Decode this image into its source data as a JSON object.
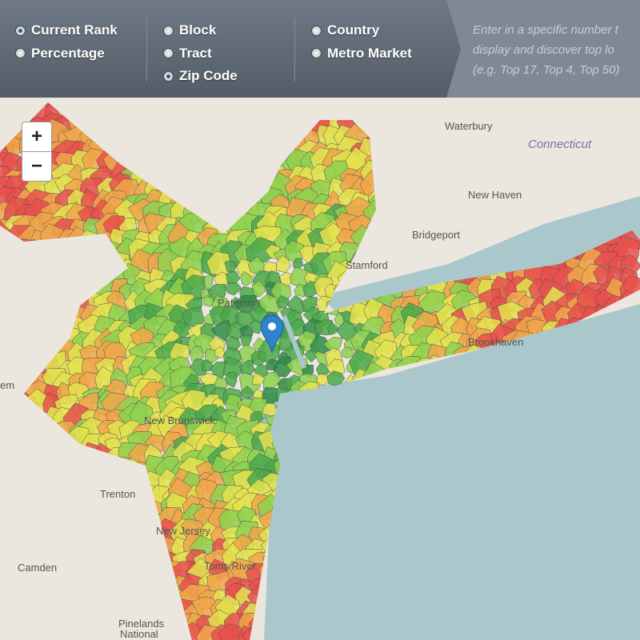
{
  "controls": {
    "rank_options": [
      {
        "label": "Current Rank",
        "selected": true
      },
      {
        "label": "Percentage",
        "selected": false
      }
    ],
    "geography_options": [
      {
        "label": "Block",
        "selected": false
      },
      {
        "label": "Tract",
        "selected": false
      },
      {
        "label": "Zip Code",
        "selected": true
      }
    ],
    "scope_options": [
      {
        "label": "Country",
        "selected": false
      },
      {
        "label": "Metro Market",
        "selected": false
      }
    ],
    "hint": [
      "Enter in a specific number t",
      "display and discover top lo",
      "(e.g. Top 17, Top 4, Top 50)"
    ]
  },
  "zoom": {
    "zoom_in": "+",
    "zoom_out": "−"
  },
  "map_labels": [
    "Waterbury",
    "Connecticut",
    "New Haven",
    "Bridgeport",
    "Stamford",
    "Paterson",
    "New Brunswick",
    "Brookhaven",
    "Trenton",
    "New Jersey",
    "Toms River",
    "Camden",
    "Pinelands",
    "National",
    "em"
  ]
}
